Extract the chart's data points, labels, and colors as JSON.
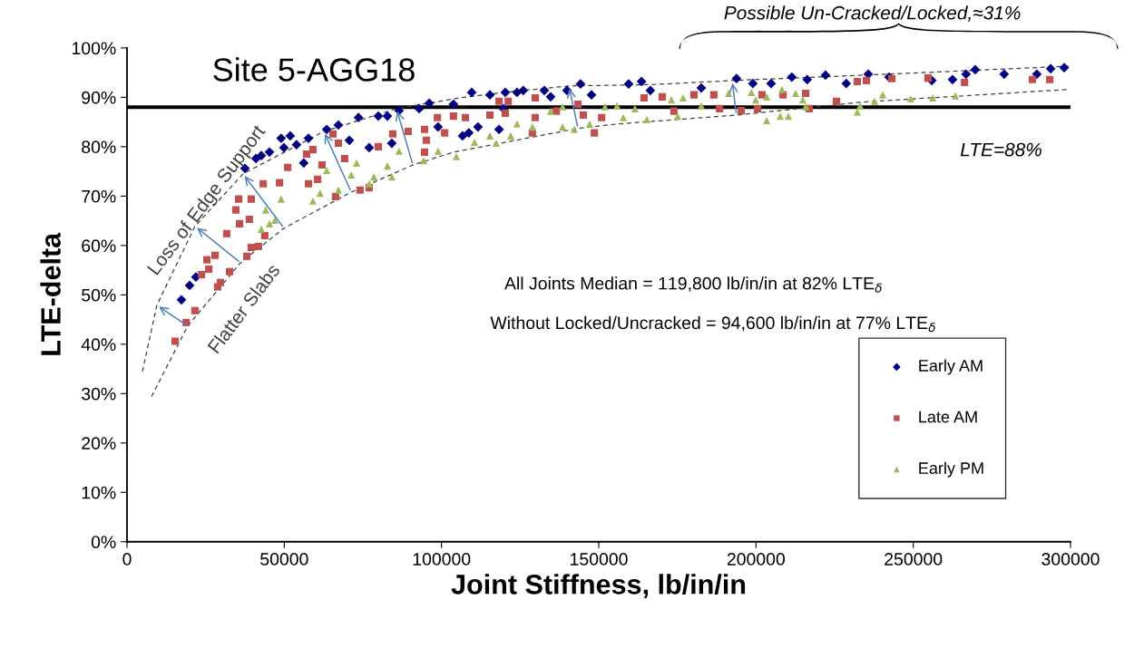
{
  "chart_data": {
    "type": "scatter",
    "title": "Site 5-AGG18",
    "xlabel": "Joint Stiffness, lb/in/in",
    "ylabel": "LTE-delta",
    "xlim": [
      0,
      300000
    ],
    "xticks": [
      0,
      50000,
      100000,
      150000,
      200000,
      250000,
      300000
    ],
    "ylim": [
      0,
      100
    ],
    "yticks": [
      {
        "value": 0,
        "label": "0%"
      },
      {
        "value": 10,
        "label": "10%"
      },
      {
        "value": 20,
        "label": "20%"
      },
      {
        "value": 30,
        "label": "30%"
      },
      {
        "value": 40,
        "label": "40%"
      },
      {
        "value": 50,
        "label": "50%"
      },
      {
        "value": 60,
        "label": "60%"
      },
      {
        "value": 70,
        "label": "70%"
      },
      {
        "value": 80,
        "label": "80%"
      },
      {
        "value": 90,
        "label": "90%"
      },
      {
        "value": 100,
        "label": "100%"
      }
    ],
    "grid": false,
    "legend": "right",
    "ref_lines": [
      {
        "axis": "y",
        "value": 88,
        "label": "LTE=88%",
        "color": "#000000"
      }
    ],
    "annotations": [
      "Possible Un-Cracked/Locked,≈31%",
      "Loss of Edge Support",
      "Flatter Slabs",
      "All Joints Median = 119,800 lb/in/in at 82% LTE$_{δ}$",
      "Without Locked/Uncracked = 94,600 lb/in/in at 77% LTE$_{δ}$"
    ],
    "series": [
      {
        "name": "Early AM",
        "color": "#000080",
        "marker": "diamond",
        "x": [
          17300,
          19900,
          21900,
          37500,
          41000,
          42700,
          45300,
          49000,
          51900,
          49900,
          53900,
          57700,
          56200,
          63500,
          67200,
          70700,
          73600,
          77000,
          79900,
          82800,
          84200,
          86500,
          92900,
          96100,
          98900,
          109600,
          115400,
          124000,
          132700,
          139900,
          103800,
          119700,
          106700,
          111600,
          108700,
          118300,
          144200,
          163600,
          159500,
          166400,
          182600,
          193800,
          199000,
          134700,
          126000,
          120300,
          147700,
          204800,
          211400,
          216300,
          222100,
          228700,
          235700,
          242300,
          255900,
          262500,
          266800,
          269700,
          278900,
          289300,
          293700,
          298000
        ],
        "values": [
          49.0,
          51.9,
          53.6,
          75.6,
          77.6,
          78.2,
          78.9,
          81.7,
          82.2,
          79.8,
          80.4,
          81.7,
          76.7,
          83.5,
          84.4,
          81.3,
          85.9,
          79.8,
          86.2,
          86.2,
          80.7,
          87.3,
          87.7,
          88.8,
          84.0,
          91.0,
          90.5,
          91.0,
          91.4,
          91.4,
          88.6,
          87.7,
          82.2,
          84.0,
          82.8,
          83.5,
          92.7,
          93.2,
          92.7,
          91.4,
          91.9,
          93.8,
          92.8,
          90.1,
          91.4,
          91.0,
          90.5,
          92.8,
          94.1,
          93.6,
          94.5,
          92.8,
          94.7,
          94.1,
          93.4,
          93.6,
          94.7,
          95.6,
          94.7,
          94.7,
          95.8,
          96.0
        ]
      },
      {
        "name": "Late AM",
        "color": "#c0504d",
        "marker": "square",
        "x": [
          15300,
          18800,
          21600,
          23700,
          26000,
          25400,
          28000,
          28800,
          29700,
          32600,
          31700,
          38100,
          39500,
          41800,
          43800,
          34600,
          35500,
          39500,
          43300,
          38900,
          35800,
          48500,
          51100,
          57700,
          60600,
          57100,
          59100,
          62000,
          65500,
          67200,
          66300,
          69200,
          74100,
          77000,
          79900,
          84500,
          89400,
          94600,
          95200,
          94600,
          98700,
          103800,
          107600,
          101000,
          118300,
          121200,
          115400,
          120300,
          129800,
          129800,
          136500,
          143400,
          145100,
          150900,
          148600,
          128900,
          164400,
          170200,
          173900,
          180300,
          186600,
          188400,
          195300,
          201900,
          200500,
          208600,
          215800,
          216900,
          225600,
          232200,
          235100,
          243200,
          254700,
          266300,
          287900,
          293400
        ],
        "values": [
          40.6,
          44.4,
          46.8,
          54.1,
          55.2,
          57.1,
          58.0,
          51.6,
          52.5,
          54.7,
          62.4,
          57.8,
          59.6,
          59.8,
          62.0,
          67.2,
          69.4,
          69.4,
          72.5,
          65.3,
          64.4,
          72.7,
          75.8,
          72.5,
          73.4,
          78.5,
          79.4,
          76.3,
          82.6,
          80.7,
          69.9,
          77.6,
          71.2,
          71.7,
          80.0,
          82.6,
          83.1,
          83.5,
          81.3,
          78.9,
          85.9,
          86.2,
          85.9,
          82.8,
          89.2,
          89.2,
          86.4,
          86.8,
          89.9,
          85.9,
          87.2,
          88.6,
          86.4,
          85.9,
          82.8,
          82.8,
          89.9,
          90.1,
          87.2,
          90.5,
          90.5,
          87.7,
          87.3,
          90.5,
          87.7,
          90.5,
          90.8,
          87.7,
          89.2,
          93.2,
          93.4,
          93.8,
          93.9,
          93.0,
          93.6,
          93.6
        ]
      },
      {
        "name": "Early PM",
        "color": "#9bbb59",
        "marker": "triangle",
        "x": [
          49000,
          44100,
          45300,
          42700,
          47000,
          59100,
          61400,
          63500,
          67200,
          71300,
          73000,
          77000,
          78500,
          82800,
          84200,
          86500,
          94300,
          98900,
          104700,
          110500,
          115400,
          117400,
          122000,
          124000,
          128900,
          134700,
          138500,
          138500,
          142200,
          147100,
          152000,
          155800,
          157800,
          161500,
          165300,
          173100,
          175100,
          176800,
          182600,
          191300,
          198500,
          199900,
          203400,
          203400,
          207700,
          208300,
          210300,
          212600,
          214900,
          215800,
          232200,
          233100,
          237700,
          240300,
          249200,
          256200,
          263400
        ],
        "values": [
          69.4,
          67.2,
          64.4,
          63.3,
          65.1,
          69.0,
          70.6,
          75.2,
          71.2,
          74.3,
          76.7,
          72.5,
          73.9,
          76.1,
          73.9,
          79.1,
          77.2,
          79.1,
          78.0,
          80.9,
          82.2,
          80.7,
          82.2,
          84.6,
          84.0,
          87.2,
          88.1,
          84.0,
          83.5,
          84.6,
          88.1,
          88.3,
          85.9,
          87.7,
          85.5,
          89.5,
          86.2,
          89.9,
          88.3,
          90.8,
          91.0,
          89.5,
          90.1,
          85.3,
          86.2,
          91.6,
          86.2,
          90.8,
          89.5,
          88.1,
          87.0,
          88.3,
          89.2,
          90.5,
          89.7,
          89.9,
          90.3
        ]
      },
      {
        "type": "line",
        "color": "#404040",
        "line_style": "dashed",
        "marker": "none",
        "x": [
          4900,
          9500,
          21600,
          36900,
          62600,
          85700,
          105900,
          120000,
          140500,
          168000,
          192400,
          234500,
          299400
        ],
        "values": [
          34.5,
          47.9,
          63.9,
          74.5,
          83.1,
          87.7,
          89.9,
          91.0,
          92.3,
          92.6,
          93.4,
          94.5,
          96.3
        ]
      },
      {
        "type": "line",
        "color": "#404040",
        "line_style": "dashed",
        "marker": "none",
        "x": [
          7800,
          19300,
          36100,
          49900,
          71300,
          90900,
          103800,
          126900,
          143400,
          155800,
          193800,
          232800,
          299100
        ],
        "values": [
          29.4,
          43.7,
          56.5,
          63.5,
          70.8,
          76.3,
          78.9,
          81.7,
          83.7,
          84.6,
          86.4,
          89.0,
          91.6
        ]
      }
    ]
  }
}
